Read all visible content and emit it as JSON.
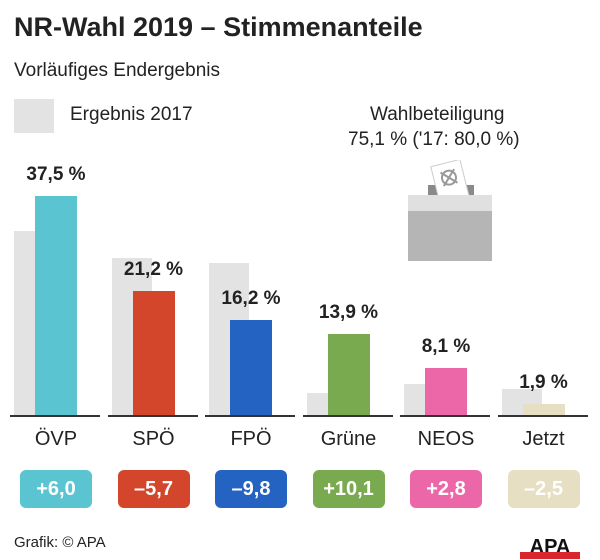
{
  "title": "NR-Wahl 2019 – Stimmenanteile",
  "subtitle": "Vorläufiges Endergebnis",
  "legend": {
    "label": "Ergebnis 2017",
    "color": "#e3e3e3"
  },
  "turnout": {
    "label": "Wahlbeteiligung",
    "value": "75,1 % ('17: 80,0 %)",
    "icon": "ballot-box-icon"
  },
  "credit": "Grafik: © APA",
  "logo": "APA",
  "chart_data": {
    "type": "bar",
    "categories": [
      "ÖVP",
      "SPÖ",
      "FPÖ",
      "Grüne",
      "NEOS",
      "Jetzt"
    ],
    "series": [
      {
        "name": "Ergebnis 2017",
        "values": [
          31.5,
          26.9,
          26.0,
          3.8,
          5.3,
          4.4
        ],
        "color": "#e3e3e3"
      },
      {
        "values": [
          37.5,
          21.2,
          16.2,
          13.9,
          8.1,
          1.9
        ],
        "colors": [
          "#5bc4d1",
          "#d4462c",
          "#2563c2",
          "#7aaa4f",
          "#ec67a8",
          "#e7dfc4"
        ]
      }
    ],
    "value_labels": [
      "37,5 %",
      "21,2 %",
      "16,2 %",
      "13,9 %",
      "8,1 %",
      "1,9 %"
    ],
    "changes": [
      "+6,0",
      "–5,7",
      "–9,8",
      "+10,1",
      "+2,8",
      "–2,5"
    ],
    "ylim": [
      0,
      40
    ]
  }
}
